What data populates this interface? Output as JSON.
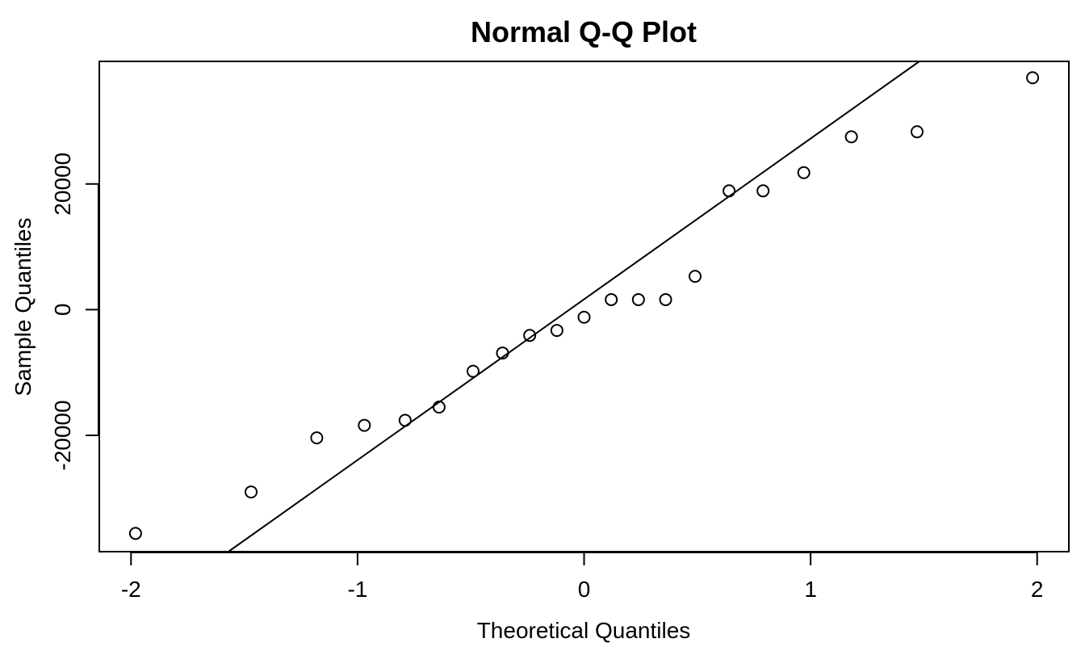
{
  "chart_data": {
    "type": "scatter",
    "title": "Normal Q-Q Plot",
    "xlabel": "Theoretical Quantiles",
    "ylabel": "Sample Quantiles",
    "xlim": [
      -2.14,
      2.14
    ],
    "ylim": [
      -38500,
      39500
    ],
    "x_ticks": [
      -2,
      -1,
      0,
      1,
      2
    ],
    "x_tick_labels": [
      "-2",
      "-1",
      "0",
      "1",
      "2"
    ],
    "y_ticks": [
      -20000,
      0,
      20000
    ],
    "y_tick_labels": [
      "-20000",
      "0",
      "20000"
    ],
    "grid": false,
    "legend": "none",
    "reference_line": {
      "x": [
        -1.57,
        1.48
      ],
      "y": [
        -38500,
        39500
      ]
    },
    "series": [
      {
        "x": [
          -1.98,
          -1.47,
          -1.18,
          -0.97,
          -0.79,
          -0.64,
          -0.49,
          -0.36,
          -0.24,
          -0.12,
          0.0,
          0.12,
          0.24,
          0.36,
          0.49,
          0.64,
          0.79,
          0.97,
          1.18,
          1.47,
          1.98
        ],
        "y": [
          -35600,
          -29000,
          -20400,
          -18400,
          -17600,
          -15500,
          -9800,
          -6900,
          -4100,
          -3300,
          -1200,
          1600,
          1600,
          1600,
          5300,
          18900,
          18900,
          21800,
          27500,
          28300,
          36900
        ]
      }
    ]
  }
}
